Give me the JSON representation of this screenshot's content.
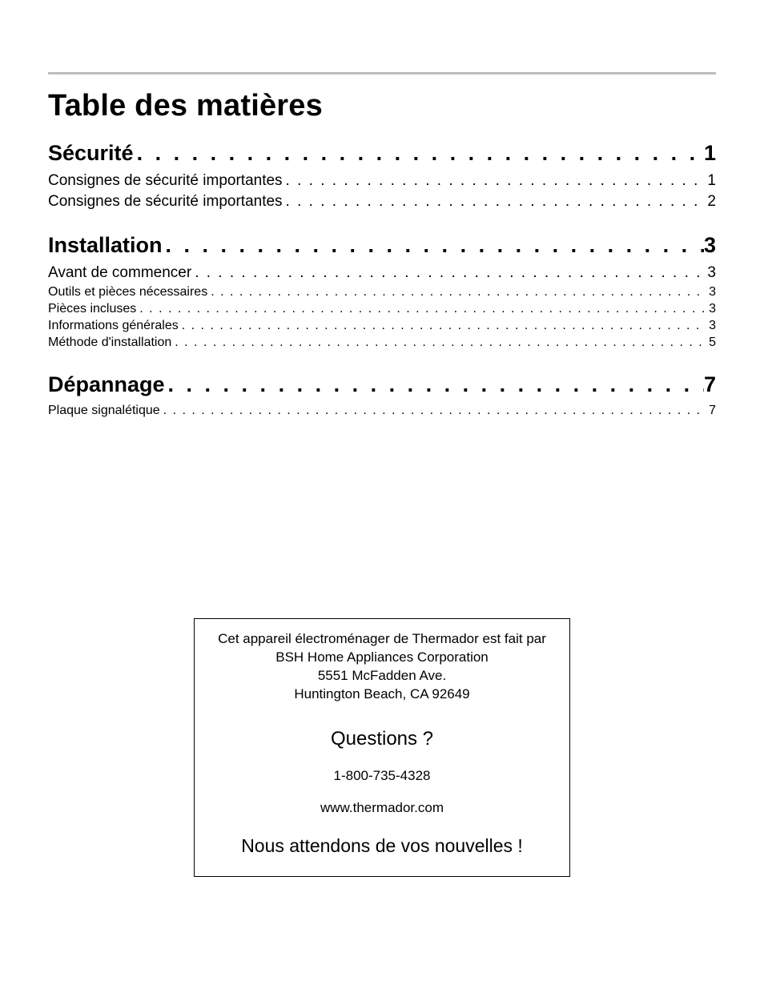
{
  "page": {
    "background_color": "#ffffff",
    "text_color": "#000000",
    "rule_color": "#bdbdbd",
    "font_family": "Arial, Helvetica, sans-serif"
  },
  "title": "Table des matières",
  "leader_char_heading": ". ",
  "leader_char_entry": ". ",
  "sections": [
    {
      "heading": {
        "label": "Sécurité",
        "page": "1"
      },
      "entry_size": "large",
      "entries": [
        {
          "label": "Consignes de sécurité importantes",
          "page": "1"
        },
        {
          "label": "Consignes de sécurité importantes",
          "page": "2"
        }
      ]
    },
    {
      "heading": {
        "label": "Installation",
        "page": "3"
      },
      "entry_size": "large_first_then_small",
      "entries": [
        {
          "label": "Avant de commencer",
          "page": "3",
          "size": "large"
        },
        {
          "label": "Outils et pièces nécessaires",
          "page": "3",
          "size": "small"
        },
        {
          "label": "Pièces incluses",
          "page": "3",
          "size": "small"
        },
        {
          "label": "Informations générales",
          "page": "3",
          "size": "small"
        },
        {
          "label": "Méthode d'installation",
          "page": "5",
          "size": "small"
        }
      ]
    },
    {
      "heading": {
        "label": "Dépannage",
        "page": "7"
      },
      "entry_size": "small",
      "entries": [
        {
          "label": "Plaque signalétique",
          "page": "7",
          "size": "small"
        }
      ]
    }
  ],
  "infobox": {
    "lines": [
      "Cet appareil électroménager de Thermador est fait par",
      "BSH Home Appliances Corporation",
      "5551 McFadden Ave.",
      "Huntington Beach, CA 92649"
    ],
    "questions": "Questions ?",
    "phone": "1-800-735-4328",
    "url": "www.thermador.com",
    "closing": "Nous attendons de vos nouvelles !"
  },
  "typography": {
    "title_fontsize": 38,
    "heading_fontsize": 27,
    "entry_large_fontsize": 19,
    "entry_small_fontsize": 16,
    "infobox_line_fontsize": 17,
    "infobox_q_fontsize": 24,
    "infobox_closing_fontsize": 23
  }
}
